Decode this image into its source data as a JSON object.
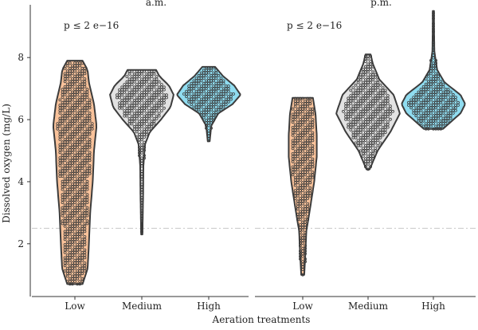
{
  "chart_data": {
    "type": "violin",
    "ylabel": "Dissolved oxygen (mg/L)",
    "xlabel": "Aeration treatments",
    "ylim": [
      0.3,
      9.7
    ],
    "yticks": [
      2,
      4,
      6,
      8
    ],
    "reference_line": 2.5,
    "categories": [
      "Low",
      "Medium",
      "High"
    ],
    "colors": {
      "Low": "#f9c29a",
      "Medium": "#e2e2e2",
      "High": "#8fdcf0"
    },
    "panels": [
      {
        "title": "a.m.",
        "annotation": "p ≤ 2 e−16",
        "groups": [
          {
            "category": "Low",
            "min": 0.7,
            "max": 7.9,
            "density": [
              [
                0.7,
                0.3
              ],
              [
                1.2,
                0.5
              ],
              [
                2.0,
                0.55
              ],
              [
                3.0,
                0.6
              ],
              [
                4.0,
                0.7
              ],
              [
                5.0,
                0.75
              ],
              [
                5.8,
                0.85
              ],
              [
                6.5,
                0.75
              ],
              [
                7.2,
                0.55
              ],
              [
                7.6,
                0.5
              ],
              [
                7.9,
                0.3
              ]
            ]
          },
          {
            "category": "Medium",
            "min": 2.3,
            "max": 7.6,
            "density": [
              [
                2.3,
                0.02
              ],
              [
                3.5,
                0.04
              ],
              [
                4.5,
                0.05
              ],
              [
                5.2,
                0.1
              ],
              [
                5.6,
                0.25
              ],
              [
                6.0,
                0.6
              ],
              [
                6.4,
                0.9
              ],
              [
                6.8,
                1.0
              ],
              [
                7.1,
                0.85
              ],
              [
                7.4,
                0.55
              ],
              [
                7.6,
                0.45
              ]
            ]
          },
          {
            "category": "High",
            "min": 5.3,
            "max": 7.7,
            "density": [
              [
                5.3,
                0.03
              ],
              [
                5.8,
                0.08
              ],
              [
                6.2,
                0.3
              ],
              [
                6.5,
                0.75
              ],
              [
                6.8,
                1.0
              ],
              [
                7.1,
                0.8
              ],
              [
                7.4,
                0.45
              ],
              [
                7.7,
                0.2
              ]
            ]
          }
        ]
      },
      {
        "title": "p.m.",
        "annotation": "p ≤ 2 e−16",
        "groups": [
          {
            "category": "Low",
            "min": 1.0,
            "max": 6.7,
            "density": [
              [
                1.0,
                0.06
              ],
              [
                1.6,
                0.1
              ],
              [
                2.4,
                0.14
              ],
              [
                3.2,
                0.3
              ],
              [
                4.0,
                0.45
              ],
              [
                4.8,
                0.55
              ],
              [
                5.5,
                0.55
              ],
              [
                6.2,
                0.5
              ],
              [
                6.7,
                0.4
              ]
            ]
          },
          {
            "category": "Medium",
            "min": 4.4,
            "max": 8.1,
            "density": [
              [
                4.4,
                0.05
              ],
              [
                5.0,
                0.3
              ],
              [
                5.6,
                0.7
              ],
              [
                6.2,
                1.0
              ],
              [
                6.8,
                0.8
              ],
              [
                7.3,
                0.35
              ],
              [
                7.8,
                0.15
              ],
              [
                8.1,
                0.08
              ]
            ]
          },
          {
            "category": "High",
            "min": 5.7,
            "max": 9.5,
            "density": [
              [
                5.7,
                0.3
              ],
              [
                6.2,
                0.85
              ],
              [
                6.5,
                1.0
              ],
              [
                6.8,
                0.85
              ],
              [
                7.2,
                0.35
              ],
              [
                7.6,
                0.12
              ],
              [
                8.2,
                0.03
              ],
              [
                9.0,
                0.02
              ],
              [
                9.5,
                0.02
              ]
            ]
          }
        ]
      }
    ]
  }
}
